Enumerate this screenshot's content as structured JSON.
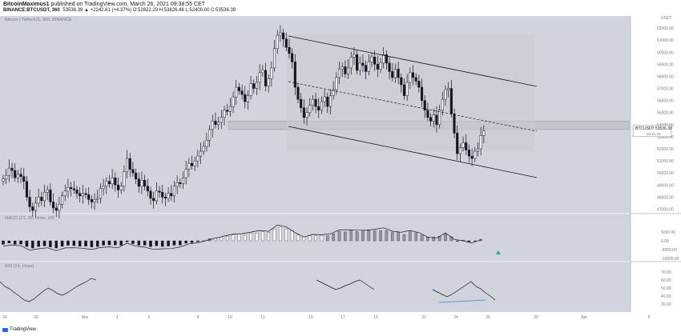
{
  "header": {
    "author": "BitcoinMaximus1",
    "published": "published on TradingView.com, March 26, 2021 09:38:55 CET",
    "symbol": "BINANCE:BTCUSDT, 360",
    "ohlc": "53536.39 ▲ +2242.61 (+4.37%) O:52822.29 H:53826.48 L:52400.00 C:53536.39"
  },
  "panes": {
    "price_title": "Bitcoin / TetherUS, 360, BINANCE",
    "macd_title": "MACD (21, 36, close, 24)",
    "rsi_title": "RSI (14, close)"
  },
  "footer": {
    "brand": "TradingView"
  },
  "colors": {
    "bg": "#d1d4dc",
    "panel": "#ffffff",
    "candle_up": "#ffffff",
    "candle_down": "#131722",
    "channel": "#131722",
    "price_tag": "#ffffff",
    "rsi_divergence": "#5b9bd5",
    "signal_arrow": "#26a69a"
  },
  "chart_data": [
    {
      "type": "candlestick",
      "title": "Bitcoin / TetherUS, 360, BINANCE",
      "currency": "USDT",
      "x_ticks": [
        "24",
        "26",
        "Mar",
        "3",
        "5",
        "8",
        "10",
        "12",
        "15",
        "17",
        "19",
        "22",
        "24",
        "26",
        "29",
        "Apr",
        "5"
      ],
      "y_ticks": [
        47000,
        48000,
        49000,
        50000,
        51000,
        52000,
        53000,
        54000,
        55000,
        56000,
        57000,
        58000,
        59000,
        60000,
        61000,
        62000
      ],
      "ylim": [
        46700,
        63000
      ],
      "last_price": {
        "label": "BTCUSDT",
        "value": "53536.39",
        "countdown": "03:21:06"
      },
      "closes": [
        49500,
        49800,
        50400,
        50200,
        49600,
        49900,
        49700,
        49300,
        48000,
        47200,
        46900,
        47500,
        48000,
        47700,
        48400,
        48600,
        47600,
        47100,
        46900,
        47400,
        48100,
        48500,
        48800,
        48700,
        48600,
        48300,
        48100,
        48300,
        48200,
        47800,
        47600,
        47800,
        47900,
        48700,
        48900,
        49300,
        49100,
        49600,
        49000,
        48600,
        48900,
        50100,
        51200,
        50300,
        50000,
        49500,
        48900,
        49400,
        48900,
        48500,
        47900,
        47700,
        48500,
        48400,
        48000,
        47900,
        48300,
        48100,
        48900,
        49200,
        49100,
        49600,
        50300,
        50800,
        50600,
        51000,
        51400,
        51800,
        52200,
        52700,
        53600,
        54300,
        54000,
        54200,
        54600,
        55200,
        55100,
        55500,
        56300,
        57100,
        56800,
        56500,
        55900,
        56400,
        57400,
        57000,
        57500,
        58300,
        58500,
        57200,
        57800,
        58700,
        60300,
        61400,
        61600,
        61100,
        60400,
        59900,
        59200,
        57100,
        56100,
        55400,
        54600,
        55000,
        55600,
        56100,
        55500,
        55200,
        55900,
        56300,
        55500,
        56400,
        56900,
        57900,
        58600,
        58800,
        58200,
        58700,
        59600,
        59800,
        58500,
        59100,
        58900,
        58400,
        59200,
        59600,
        59000,
        58600,
        59100,
        59800,
        59100,
        58400,
        57900,
        58600,
        57900,
        57300,
        56400,
        57500,
        58300,
        57900,
        57600,
        57100,
        56000,
        55200,
        54600,
        54300,
        54800,
        54000,
        55200,
        56100,
        56900,
        57000,
        54900,
        53300,
        51600,
        52100,
        52500,
        51900,
        51400,
        51200,
        51800,
        52000,
        53100,
        53500
      ],
      "channel_lines": [
        "upper",
        "mid (dashed)",
        "lower"
      ],
      "horizontal_zone": [
        53600,
        54300
      ]
    },
    {
      "type": "bar",
      "title": "MACD (21, 36, close, 24)",
      "y_ticks": [
        5000,
        0,
        -5000,
        -10000
      ],
      "note": "histogram with signal line; green up arrow at last bar"
    },
    {
      "type": "line",
      "title": "RSI (14, close)",
      "y_ticks": [
        70,
        60,
        50,
        40,
        30
      ],
      "bullish_divergence": true
    }
  ]
}
